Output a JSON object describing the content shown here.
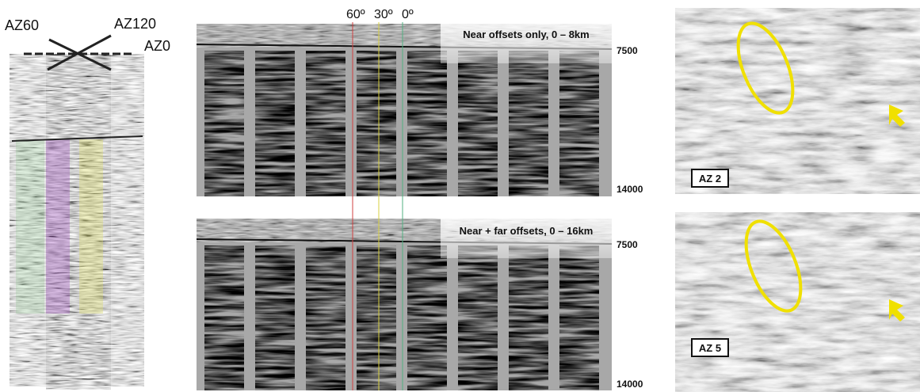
{
  "left": {
    "labels": [
      "AZ60",
      "AZ120",
      "AZ0"
    ]
  },
  "middle": {
    "angles": [
      "60º",
      "30º",
      "0º"
    ],
    "panels": [
      {
        "title": "Near offsets only, 0 – 8km",
        "depth_top": "7500",
        "depth_bottom": "14000"
      },
      {
        "title": "Near + far offsets, 0 – 16km",
        "depth_top": "7500",
        "depth_bottom": "14000"
      }
    ]
  },
  "right": {
    "panels": [
      {
        "label": "AZ 2"
      },
      {
        "label": "AZ 5"
      }
    ]
  }
}
